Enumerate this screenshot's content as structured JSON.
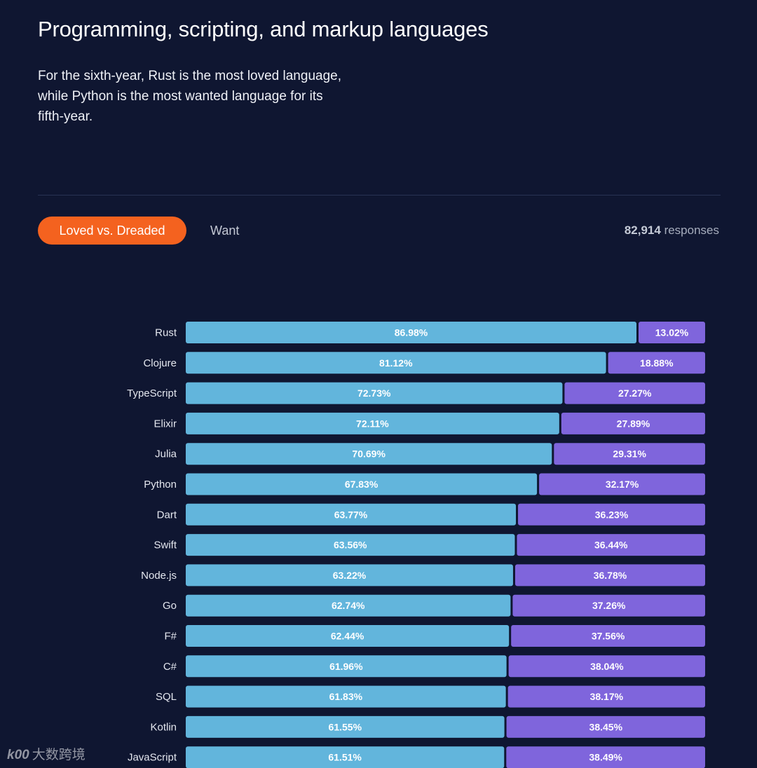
{
  "header": {
    "title": "Programming, scripting, and markup languages",
    "description": "For the sixth-year, Rust is the most loved language, while Python is the most wanted language for its fifth-year."
  },
  "tabs": {
    "active_label": "Loved vs. Dreaded",
    "inactive_label": "Want"
  },
  "responses": {
    "count": "82,914",
    "label": "responses"
  },
  "colors": {
    "background": "#0f1631",
    "loved": "#62b5dc",
    "dreaded": "#7f65dc",
    "accent": "#f4621f"
  },
  "watermark": {
    "logo": "k00",
    "text": "大数跨境"
  },
  "chart_data": {
    "type": "bar",
    "orientation": "horizontal",
    "stacked": true,
    "title": "Programming, scripting, and markup languages",
    "xlabel": "",
    "ylabel": "",
    "xlim": [
      0,
      100
    ],
    "categories": [
      "Rust",
      "Clojure",
      "TypeScript",
      "Elixir",
      "Julia",
      "Python",
      "Dart",
      "Swift",
      "Node.js",
      "Go",
      "F#",
      "C#",
      "SQL",
      "Kotlin",
      "JavaScript"
    ],
    "series": [
      {
        "name": "Loved",
        "values": [
          86.98,
          81.12,
          72.73,
          72.11,
          70.69,
          67.83,
          63.77,
          63.56,
          63.22,
          62.74,
          62.44,
          61.96,
          61.83,
          61.55,
          61.51
        ],
        "labels": [
          "86.98%",
          "81.12%",
          "72.73%",
          "72.11%",
          "70.69%",
          "67.83%",
          "63.77%",
          "63.56%",
          "63.22%",
          "62.74%",
          "62.44%",
          "61.96%",
          "61.83%",
          "61.55%",
          "61.51%"
        ]
      },
      {
        "name": "Dreaded",
        "values": [
          13.02,
          18.88,
          27.27,
          27.89,
          29.31,
          32.17,
          36.23,
          36.44,
          36.78,
          37.26,
          37.56,
          38.04,
          38.17,
          38.45,
          38.49
        ],
        "labels": [
          "13.02%",
          "18.88%",
          "27.27%",
          "27.89%",
          "29.31%",
          "32.17%",
          "36.23%",
          "36.44%",
          "36.78%",
          "37.26%",
          "37.56%",
          "38.04%",
          "38.17%",
          "38.45%",
          "38.49%"
        ]
      }
    ]
  }
}
